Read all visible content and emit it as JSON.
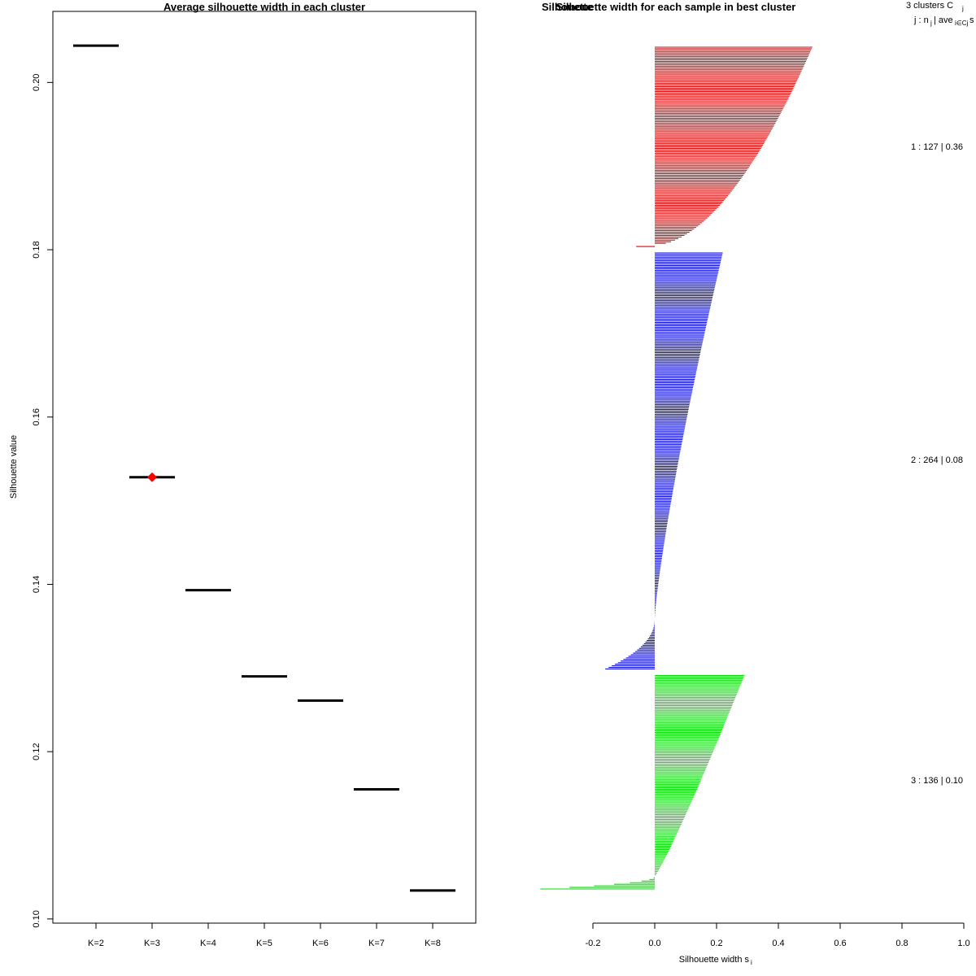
{
  "chart_data": [
    {
      "type": "line",
      "title": "Average silhouette width in each cluster",
      "xlabel": "",
      "ylabel": "Silhouette value",
      "categories": [
        "K=2",
        "K=3",
        "K=4",
        "K=5",
        "K=6",
        "K=7",
        "K=8"
      ],
      "values": [
        0.2044,
        0.1528,
        0.1393,
        0.129,
        0.1261,
        0.1155,
        0.1034
      ],
      "best_k": "K=3",
      "highlight_color": "#ff0000",
      "ylim": [
        0.0995,
        0.208
      ],
      "yticks": [
        "0.10",
        "0.12",
        "0.14",
        "0.16",
        "0.18",
        "0.20"
      ]
    },
    {
      "type": "bar",
      "title": "Silhouette width for each sample in best cluster",
      "overlap_title": "Silhouette",
      "xlabel": "Silhouette width s",
      "xlabel_sub": "i",
      "xlim": [
        -0.2,
        1.0
      ],
      "xticks": [
        "-0.2",
        "0.0",
        "0.2",
        "0.4",
        "0.6",
        "0.8",
        "1.0"
      ],
      "legend_header": {
        "line1": "3  clusters  C",
        "line1_sub": "j",
        "line2_a": "j :  n",
        "line2_sub1": "j",
        "line2_b": " | ave",
        "line2_sub2": "i∈Cj",
        "line2_c": "  s"
      },
      "clusters": [
        {
          "id": 1,
          "label": "1 :  127  |  0.36",
          "n": 127,
          "ave": 0.36,
          "color": "#df0000",
          "max": 0.51,
          "min": -0.06
        },
        {
          "id": 2,
          "label": "2 :  264  |  0.08",
          "n": 264,
          "ave": 0.08,
          "color": "#0000df",
          "max": 0.22,
          "min": -0.16
        },
        {
          "id": 3,
          "label": "3 :  136  |  0.10",
          "n": 136,
          "ave": 0.1,
          "color": "#00df00",
          "max": 0.29,
          "min": -0.37
        }
      ]
    }
  ]
}
